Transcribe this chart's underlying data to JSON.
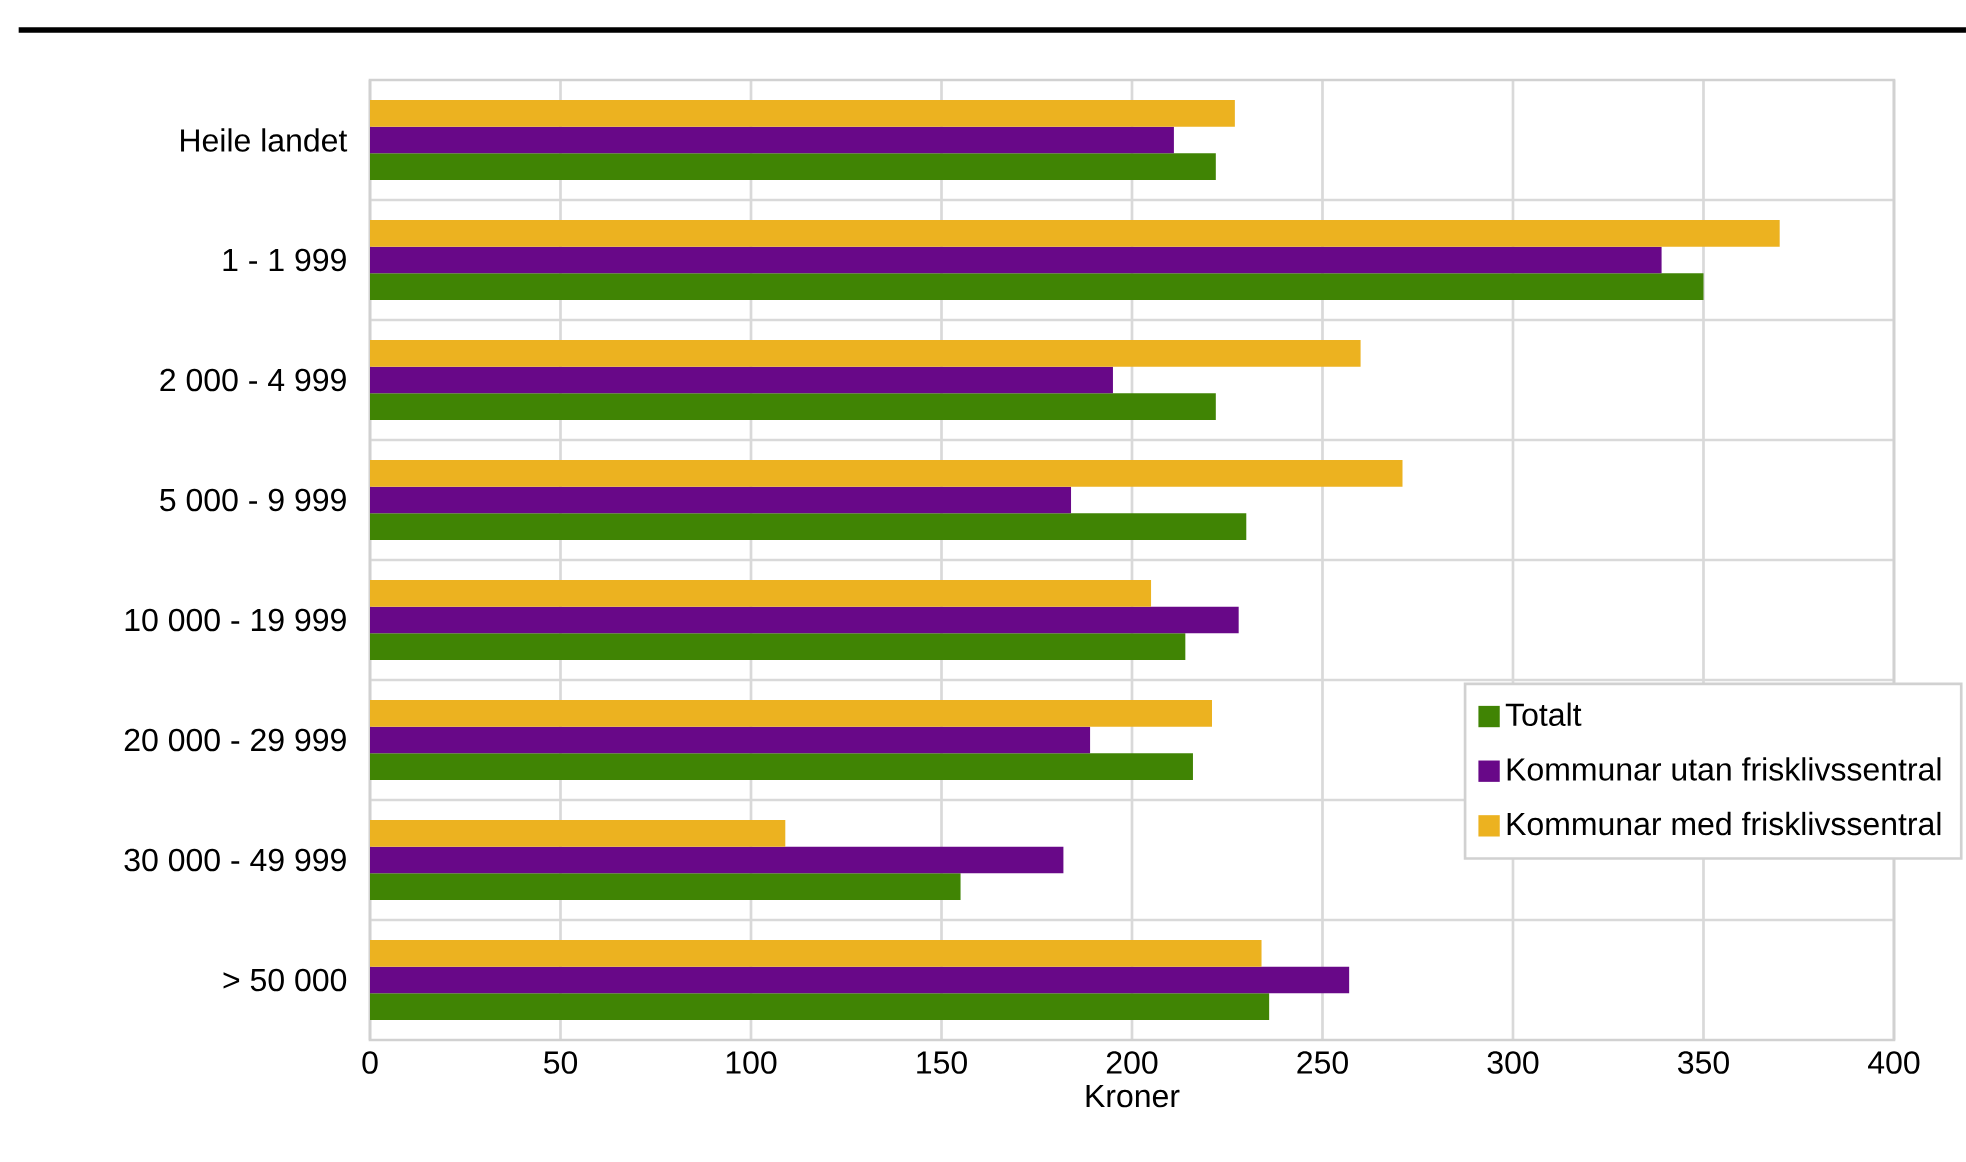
{
  "chart_data": {
    "type": "bar",
    "orientation": "horizontal",
    "xlabel": "Kroner",
    "categories": [
      "Heile landet",
      "1  -  1 999",
      "2 000  -  4 999",
      "5 000  -  9 999",
      "10 000 - 19 999",
      "20 000 - 29 999",
      "30 000 - 49 999",
      "> 50 000"
    ],
    "series": [
      {
        "name": "Totalt",
        "color": "#408404",
        "values": [
          222,
          350,
          222,
          230,
          214,
          216,
          155,
          236
        ]
      },
      {
        "name": "Kommunar utan frisklivssentral",
        "color": "#680888",
        "values": [
          211,
          339,
          195,
          184,
          228,
          189,
          182,
          257
        ]
      },
      {
        "name": "Kommunar med frisklivssentral",
        "color": "#ecb220",
        "values": [
          227,
          370,
          260,
          271,
          205,
          221,
          109,
          234
        ]
      }
    ],
    "xlim": [
      0,
      400
    ],
    "xticks": [
      0,
      50,
      100,
      150,
      200,
      250,
      300,
      350,
      400
    ],
    "grid": true,
    "legend": "right"
  }
}
